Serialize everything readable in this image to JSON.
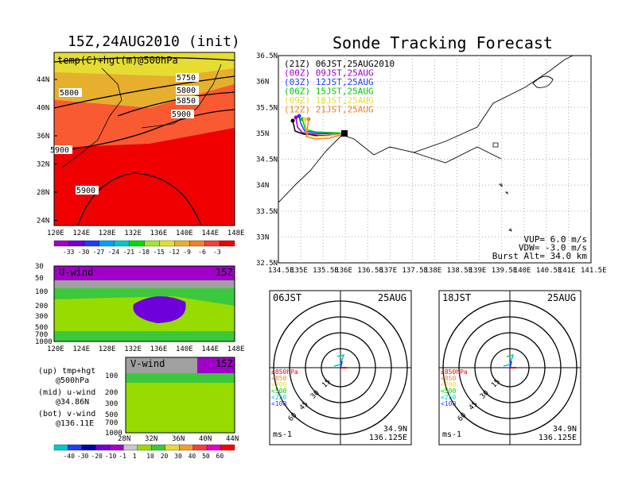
{
  "titles": {
    "main": "Sonde Tracking Forecast",
    "left_map": "15Z,24AUG2010 (init)"
  },
  "left_map": {
    "label": "temp(C)+hgt(m)@500hPa",
    "lat_ticks": [
      "44N",
      "40N",
      "36N",
      "32N",
      "28N",
      "24N"
    ],
    "lon_ticks": [
      "120E",
      "124E",
      "128E",
      "132E",
      "136E",
      "140E",
      "144E",
      "148E"
    ],
    "contour_labels": [
      "5750",
      "5800",
      "5800",
      "5850",
      "5900",
      "5900",
      "5900"
    ],
    "colorbar_labels": [
      "-33",
      "-30",
      "-27",
      "-24",
      "-21",
      "-18",
      "-15",
      "-12",
      "-9",
      "-6",
      "-3"
    ],
    "colorbar_colors": [
      "#a000c8",
      "#6e00dc",
      "#1e3cff",
      "#00a0ff",
      "#00c8c8",
      "#00dc00",
      "#a0e632",
      "#e6dc32",
      "#e6af2d",
      "#f08228",
      "#fa3c3c",
      "#f00000"
    ]
  },
  "uwind": {
    "label": "U-wind",
    "time": "15Z",
    "y_ticks": [
      "30",
      "50",
      "100",
      "200",
      "300",
      "500",
      "700",
      "1000"
    ],
    "x_ticks": [
      "120E",
      "124E",
      "128E",
      "132E",
      "136E",
      "140E",
      "144E",
      "148E"
    ]
  },
  "vwind": {
    "label": "V-wind",
    "time": "15Z",
    "y_ticks": [
      "100",
      "200",
      "300",
      "500",
      "700",
      "1000"
    ],
    "x_ticks": [
      "28N",
      "32N",
      "36N",
      "40N",
      "44N"
    ]
  },
  "legend_notes": [
    {
      "a": "(up)  tmp+hgt",
      "b": "@500hPa"
    },
    {
      "a": "(mid)  u-wind",
      "b": "@34.86N"
    },
    {
      "a": "(bot)  v-wind",
      "b": "@136.11E"
    }
  ],
  "wind_colorbar": {
    "labels": [
      "-40",
      "-30",
      "-20",
      "-10",
      "-1",
      "1",
      "10",
      "20",
      "30",
      "40",
      "50",
      "60"
    ],
    "colors": [
      "#00c8c8",
      "#1e3cff",
      "#0000a0",
      "#6e00dc",
      "#a000c8",
      "#c8c8c8",
      "#96dc00",
      "#3cc83c",
      "#e6dc32",
      "#f0a028",
      "#fa3c3c",
      "#e600c8",
      "#ff0000"
    ]
  },
  "track_map": {
    "lat_ticks": [
      "36.5N",
      "36N",
      "35.5N",
      "35N",
      "34.5N",
      "34N",
      "33.5N",
      "33N",
      "32.5N"
    ],
    "lon_ticks": [
      "134.5E",
      "135E",
      "135.5E",
      "136E",
      "136.5E",
      "137E",
      "137.5E",
      "138E",
      "138.5E",
      "139E",
      "139.5E",
      "140E",
      "140.5E",
      "141E",
      "141.5E"
    ],
    "legend": [
      {
        "text": "(21Z)  06JST,25AUG2010",
        "color": "#000000"
      },
      {
        "text": "(00Z)  09JST,25AUG",
        "color": "#a000c8"
      },
      {
        "text": "(03Z)  12JST,25AUG",
        "color": "#1e3cff"
      },
      {
        "text": "(06Z)  15JST,25AUG",
        "color": "#00c800"
      },
      {
        "text": "(09Z)  18JST,25AUG",
        "color": "#e6dc32"
      },
      {
        "text": "(12Z)  21JST,25AUG",
        "color": "#f08228"
      }
    ],
    "params": [
      "VUP=  6.0 m/s",
      "VDW= -3.0 m/s",
      "Burst Alt= 34.0 km"
    ]
  },
  "hodo1": {
    "time": "06JST",
    "date": "25AUG",
    "ring_labels": [
      "15",
      "30",
      "45",
      "60"
    ],
    "levels": [
      "≥850hPa",
      "<850",
      "<700",
      "<500",
      "<250",
      "<100"
    ],
    "level_colors": [
      "#f00000",
      "#f08228",
      "#e6dc32",
      "#00c800",
      "#00c8c8",
      "#1e3cff"
    ],
    "unit": "ms-1",
    "lat": "34.9N",
    "lon": "136.125E"
  },
  "hodo2": {
    "time": "18JST",
    "date": "25AUG",
    "ring_labels": [
      "15",
      "30",
      "45",
      "60"
    ],
    "levels": [
      "≥850hPa",
      "<850",
      "<700",
      "<500",
      "<250",
      "<100"
    ],
    "level_colors": [
      "#f00000",
      "#f08228",
      "#e6dc32",
      "#00c800",
      "#00c8c8",
      "#1e3cff"
    ],
    "unit": "ms-1",
    "lat": "34.9N",
    "lon": "136.125E"
  }
}
